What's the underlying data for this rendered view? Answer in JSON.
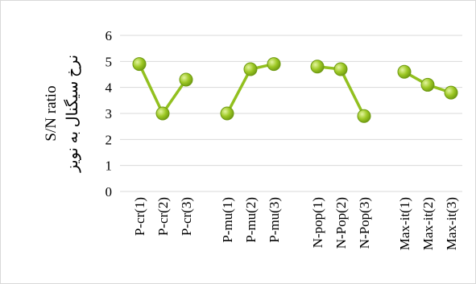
{
  "chart_data": {
    "type": "line",
    "ylabel": "S/N ratio",
    "ylabel_fa": "نرخ سیگنال به نویز",
    "ylim": [
      0,
      6
    ],
    "yticks": [
      "0",
      "1",
      "2",
      "3",
      "4",
      "5",
      "6"
    ],
    "grid": "horizontal",
    "legend": "none",
    "colors": {
      "line": "#92c01f",
      "marker": "#9dc824",
      "marker_edge": "#6f9a12",
      "grid": "#d9d9d9"
    },
    "series": [
      {
        "categories": [
          "P-cr(1)",
          "P-cr(2)",
          "P-cr(3)"
        ],
        "values": [
          4.9,
          3.0,
          4.3
        ]
      },
      {
        "categories": [
          "P-mu(1)",
          "P-mu(2)",
          "P-mu(3)"
        ],
        "values": [
          3.0,
          4.7,
          4.9
        ]
      },
      {
        "categories": [
          "N-pop(1)",
          "N-Pop(2)",
          "N-Pop(3)"
        ],
        "values": [
          4.8,
          4.7,
          2.9
        ]
      },
      {
        "categories": [
          "Max-it(1)",
          "Max-it(2)",
          "Max-it(3)"
        ],
        "values": [
          4.6,
          4.1,
          3.8
        ]
      }
    ]
  }
}
